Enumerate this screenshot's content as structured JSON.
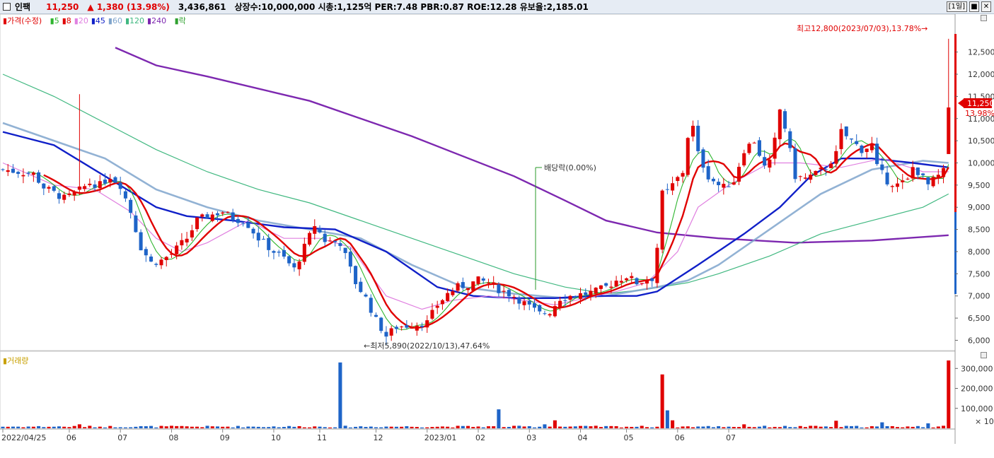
{
  "header": {
    "stock_name": "인팩",
    "price": "11,250",
    "change": "▲ 1,380 (13.98%)",
    "volume": "3,436,861",
    "info": "상장수:10,000,000 시총:1,125억 PER:7.48 PBR:0.87 ROE:12.28 유보율:2,185.01",
    "period": "[1일]"
  },
  "legend": {
    "price": "가격(수정)",
    "ma": [
      {
        "label": "5",
        "color": "#2fb52f"
      },
      {
        "label": "8",
        "color": "#e00000"
      },
      {
        "label": "20",
        "color": "#e080e0"
      },
      {
        "label": "45",
        "color": "#1020c8"
      },
      {
        "label": "60",
        "color": "#7fa4cc"
      },
      {
        "label": "120",
        "color": "#40b880"
      },
      {
        "label": "240",
        "color": "#7d28b0"
      }
    ],
    "drop": "락",
    "volume": "거래량"
  },
  "annotations": {
    "high": "최고12,800(2023/07/03),13.78%→",
    "low": "←최저5,890(2022/10/13),47.64%",
    "dividend": "배당락(0.00%)",
    "current_price": "11,250",
    "current_pct": "13.98%",
    "vol_unit": "× 10"
  },
  "colors": {
    "up": "#e00000",
    "down": "#1e64c8"
  },
  "chart_data": {
    "type": "candlestick",
    "ylim": [
      5800,
      13100
    ],
    "price_ticks": [
      "12,500",
      "12,000",
      "11,500",
      "11,000",
      "10,500",
      "10,000",
      "9,500",
      "9,000",
      "8,500",
      "8,000",
      "7,500",
      "7,000",
      "6,500",
      "6,000"
    ],
    "volume_ticks": [
      "300,000",
      "200,000",
      "100,000"
    ],
    "volume_ylim": [
      0,
      340000
    ],
    "x_labels": [
      "2022/04/25",
      "06",
      "07",
      "08",
      "09",
      "10",
      "11",
      "12",
      "2023/01",
      "02",
      "03",
      "04",
      "05",
      "06",
      "07"
    ],
    "price_path": [
      [
        0,
        9850
      ],
      [
        6,
        9750
      ],
      [
        8,
        9450
      ],
      [
        12,
        9200
      ],
      [
        14,
        9300
      ],
      [
        17,
        9550
      ],
      [
        19,
        9500
      ],
      [
        21,
        9700
      ],
      [
        23,
        9500
      ],
      [
        25,
        8900
      ],
      [
        27,
        8100
      ],
      [
        29,
        7750
      ],
      [
        31,
        7800
      ],
      [
        33,
        7950
      ],
      [
        36,
        8300
      ],
      [
        38,
        8700
      ],
      [
        40,
        8800
      ],
      [
        43,
        8900
      ],
      [
        45,
        8750
      ],
      [
        47,
        8700
      ],
      [
        48,
        8600
      ],
      [
        50,
        8300
      ],
      [
        53,
        8000
      ],
      [
        55,
        7850
      ],
      [
        57,
        7600
      ],
      [
        59,
        8100
      ],
      [
        61,
        8600
      ],
      [
        63,
        8250
      ],
      [
        66,
        8200
      ],
      [
        67,
        7900
      ],
      [
        69,
        7300
      ],
      [
        71,
        6950
      ],
      [
        73,
        6450
      ],
      [
        75,
        6100
      ],
      [
        77,
        6300
      ],
      [
        80,
        6350
      ],
      [
        83,
        6400
      ],
      [
        85,
        6800
      ],
      [
        87,
        7050
      ],
      [
        89,
        7200
      ],
      [
        91,
        7250
      ],
      [
        93,
        7350
      ],
      [
        95,
        7300
      ],
      [
        97,
        7150
      ],
      [
        100,
        7000
      ],
      [
        103,
        6750
      ],
      [
        105,
        6600
      ],
      [
        107,
        6650
      ],
      [
        109,
        6950
      ],
      [
        111,
        7000
      ],
      [
        114,
        7050
      ],
      [
        116,
        7100
      ],
      [
        118,
        7200
      ],
      [
        120,
        7350
      ],
      [
        122,
        7450
      ],
      [
        124,
        7300
      ],
      [
        127,
        7400
      ],
      [
        128,
        8100
      ],
      [
        129,
        9300
      ],
      [
        130,
        9350
      ],
      [
        131,
        9500
      ],
      [
        133,
        9800
      ],
      [
        134,
        10600
      ],
      [
        135,
        10800
      ],
      [
        136,
        10200
      ],
      [
        138,
        9700
      ],
      [
        140,
        9500
      ],
      [
        141,
        9450
      ],
      [
        143,
        9600
      ],
      [
        145,
        10300
      ],
      [
        147,
        10500
      ],
      [
        148,
        10200
      ],
      [
        149,
        9900
      ],
      [
        150,
        10000
      ],
      [
        151,
        10500
      ],
      [
        152,
        11200
      ],
      [
        153,
        10800
      ],
      [
        155,
        9700
      ],
      [
        157,
        9650
      ],
      [
        159,
        9750
      ],
      [
        161,
        9900
      ],
      [
        163,
        10200
      ],
      [
        164,
        10700
      ],
      [
        166,
        10500
      ],
      [
        168,
        10300
      ],
      [
        170,
        10400
      ],
      [
        171,
        9900
      ],
      [
        173,
        9600
      ],
      [
        175,
        9500
      ],
      [
        177,
        9600
      ],
      [
        178,
        9900
      ],
      [
        179,
        9800
      ],
      [
        181,
        9500
      ],
      [
        183,
        9700
      ],
      [
        184,
        9800
      ],
      [
        185,
        11250
      ]
    ],
    "ma_lines": [
      {
        "name": "240",
        "points": [
          [
            22,
            12600
          ],
          [
            30,
            12200
          ],
          [
            40,
            11950
          ],
          [
            60,
            11400
          ],
          [
            80,
            10600
          ],
          [
            100,
            9700
          ],
          [
            110,
            9150
          ],
          [
            118,
            8700
          ],
          [
            128,
            8430
          ],
          [
            140,
            8300
          ],
          [
            155,
            8200
          ],
          [
            170,
            8250
          ],
          [
            185,
            8370
          ]
        ]
      },
      {
        "name": "120",
        "points": [
          [
            0,
            12000
          ],
          [
            10,
            11500
          ],
          [
            20,
            10900
          ],
          [
            30,
            10300
          ],
          [
            40,
            9800
          ],
          [
            50,
            9400
          ],
          [
            60,
            9100
          ],
          [
            70,
            8700
          ],
          [
            80,
            8300
          ],
          [
            90,
            7900
          ],
          [
            100,
            7500
          ],
          [
            110,
            7200
          ],
          [
            118,
            7050
          ],
          [
            126,
            7150
          ],
          [
            134,
            7300
          ],
          [
            140,
            7500
          ],
          [
            150,
            7900
          ],
          [
            160,
            8400
          ],
          [
            170,
            8700
          ],
          [
            180,
            9000
          ],
          [
            185,
            9300
          ]
        ]
      },
      {
        "name": "60",
        "points": [
          [
            0,
            10900
          ],
          [
            10,
            10500
          ],
          [
            20,
            10100
          ],
          [
            30,
            9400
          ],
          [
            40,
            9000
          ],
          [
            50,
            8700
          ],
          [
            60,
            8500
          ],
          [
            70,
            8300
          ],
          [
            80,
            7700
          ],
          [
            90,
            7200
          ],
          [
            100,
            7050
          ],
          [
            110,
            6950
          ],
          [
            118,
            7000
          ],
          [
            128,
            7200
          ],
          [
            134,
            7350
          ],
          [
            140,
            7700
          ],
          [
            150,
            8500
          ],
          [
            160,
            9300
          ],
          [
            170,
            9850
          ],
          [
            180,
            10050
          ],
          [
            185,
            10000
          ]
        ]
      },
      {
        "name": "45",
        "points": [
          [
            0,
            10700
          ],
          [
            10,
            10400
          ],
          [
            20,
            9700
          ],
          [
            30,
            9000
          ],
          [
            36,
            8800
          ],
          [
            45,
            8700
          ],
          [
            55,
            8550
          ],
          [
            65,
            8500
          ],
          [
            75,
            8000
          ],
          [
            85,
            7200
          ],
          [
            92,
            7000
          ],
          [
            100,
            6950
          ],
          [
            108,
            6950
          ],
          [
            115,
            7000
          ],
          [
            124,
            7000
          ],
          [
            128,
            7100
          ],
          [
            136,
            7700
          ],
          [
            145,
            8400
          ],
          [
            152,
            9000
          ],
          [
            158,
            9700
          ],
          [
            164,
            10100
          ],
          [
            170,
            10100
          ],
          [
            178,
            10000
          ],
          [
            185,
            9900
          ]
        ]
      },
      {
        "name": "20",
        "points": [
          [
            0,
            10000
          ],
          [
            10,
            9500
          ],
          [
            18,
            9400
          ],
          [
            25,
            8900
          ],
          [
            30,
            8300
          ],
          [
            35,
            8000
          ],
          [
            40,
            8200
          ],
          [
            48,
            8700
          ],
          [
            55,
            8300
          ],
          [
            62,
            8300
          ],
          [
            68,
            8100
          ],
          [
            75,
            7000
          ],
          [
            82,
            6700
          ],
          [
            88,
            6900
          ],
          [
            95,
            7000
          ],
          [
            102,
            6900
          ],
          [
            108,
            6800
          ],
          [
            114,
            6950
          ],
          [
            120,
            7100
          ],
          [
            126,
            7300
          ],
          [
            132,
            8000
          ],
          [
            136,
            9000
          ],
          [
            142,
            9500
          ],
          [
            150,
            10000
          ],
          [
            156,
            10000
          ],
          [
            164,
            9900
          ],
          [
            172,
            10100
          ],
          [
            180,
            9800
          ],
          [
            185,
            9800
          ]
        ]
      }
    ]
  }
}
